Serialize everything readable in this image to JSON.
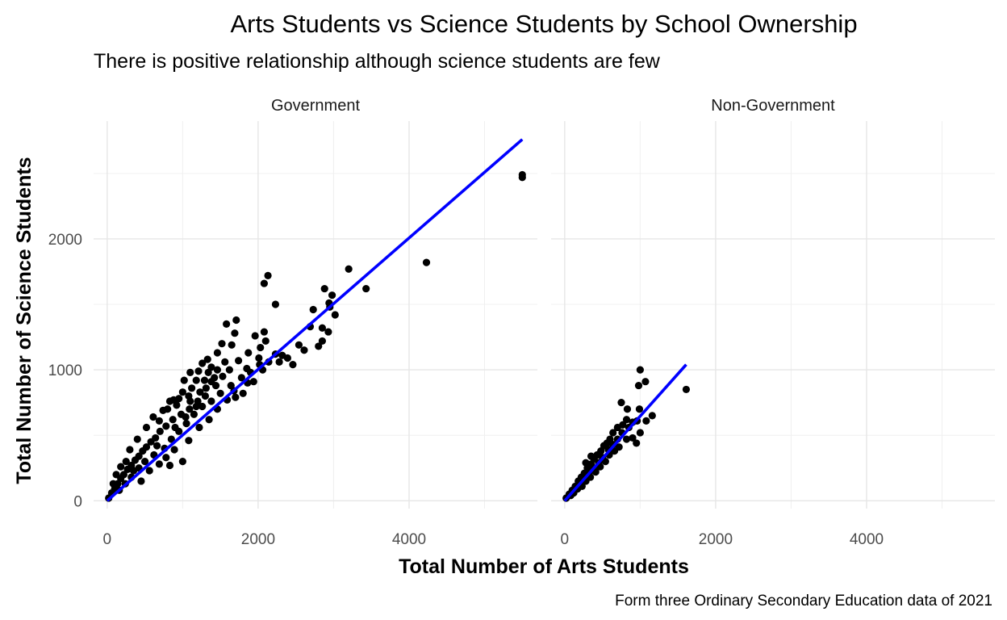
{
  "chart_data": {
    "type": "scatter",
    "title": "Arts Students vs Science Students by School Ownership",
    "subtitle": "There is positive relationship although science students are few",
    "caption": "Form three Ordinary Secondary Education data of 2021",
    "xlabel": "Total Number of Arts Students",
    "ylabel": "Total Number of Science Students",
    "xlim": [
      -180,
      5700
    ],
    "ylim": [
      -60,
      2900
    ],
    "x_ticks": [
      0,
      2000,
      4000
    ],
    "y_ticks": [
      0,
      1000,
      2000
    ],
    "x_tick_labels": [
      "0",
      "2000",
      "4000"
    ],
    "y_tick_labels": [
      "0",
      "1000",
      "2000"
    ],
    "grid": true,
    "point_color": "#000000",
    "fit_color": "#0000ff",
    "facets": [
      {
        "label": "Government",
        "fit_line": {
          "x": [
            0,
            5500
          ],
          "y": [
            0,
            2760
          ]
        },
        "points": [
          [
            5500,
            2470
          ],
          [
            5500,
            2490
          ],
          [
            4230,
            1820
          ],
          [
            3200,
            1770
          ],
          [
            3430,
            1620
          ],
          [
            2880,
            1620
          ],
          [
            2080,
            1660
          ],
          [
            2130,
            1720
          ],
          [
            2940,
            1510
          ],
          [
            2980,
            1570
          ],
          [
            2230,
            1500
          ],
          [
            2950,
            1480
          ],
          [
            3020,
            1420
          ],
          [
            2730,
            1460
          ],
          [
            2850,
            1320
          ],
          [
            2690,
            1330
          ],
          [
            2930,
            1290
          ],
          [
            2850,
            1220
          ],
          [
            2800,
            1180
          ],
          [
            2610,
            1150
          ],
          [
            2540,
            1190
          ],
          [
            2390,
            1090
          ],
          [
            2320,
            1110
          ],
          [
            2460,
            1040
          ],
          [
            1710,
            1380
          ],
          [
            1580,
            1350
          ],
          [
            1690,
            1280
          ],
          [
            1650,
            1190
          ],
          [
            1960,
            1260
          ],
          [
            2080,
            1290
          ],
          [
            2100,
            1220
          ],
          [
            2030,
            1170
          ],
          [
            2010,
            1090
          ],
          [
            1870,
            1130
          ],
          [
            1850,
            1010
          ],
          [
            1740,
            1070
          ],
          [
            1520,
            1200
          ],
          [
            1460,
            1130
          ],
          [
            1330,
            1080
          ],
          [
            1380,
            1020
          ],
          [
            1260,
            1050
          ],
          [
            1210,
            990
          ],
          [
            1340,
            980
          ],
          [
            1100,
            980
          ],
          [
            1180,
            920
          ],
          [
            1290,
            920
          ],
          [
            1020,
            920
          ],
          [
            1120,
            860
          ],
          [
            1000,
            830
          ],
          [
            1080,
            800
          ],
          [
            950,
            780
          ],
          [
            920,
            730
          ],
          [
            1230,
            830
          ],
          [
            1380,
            910
          ],
          [
            1460,
            1000
          ],
          [
            1560,
            1060
          ],
          [
            1620,
            1000
          ],
          [
            1530,
            950
          ],
          [
            1440,
            880
          ],
          [
            1300,
            800
          ],
          [
            1200,
            760
          ],
          [
            1090,
            700
          ],
          [
            980,
            660
          ],
          [
            870,
            620
          ],
          [
            780,
            570
          ],
          [
            700,
            530
          ],
          [
            640,
            480
          ],
          [
            580,
            450
          ],
          [
            520,
            410
          ],
          [
            470,
            380
          ],
          [
            420,
            340
          ],
          [
            370,
            310
          ],
          [
            320,
            270
          ],
          [
            270,
            240
          ],
          [
            220,
            200
          ],
          [
            180,
            170
          ],
          [
            140,
            130
          ],
          [
            100,
            90
          ],
          [
            60,
            60
          ],
          [
            20,
            20
          ],
          [
            620,
            350
          ],
          [
            760,
            400
          ],
          [
            850,
            470
          ],
          [
            950,
            530
          ],
          [
            1050,
            590
          ],
          [
            1150,
            660
          ],
          [
            1260,
            720
          ],
          [
            1380,
            760
          ],
          [
            1500,
            820
          ],
          [
            1640,
            880
          ],
          [
            1780,
            940
          ],
          [
            1900,
            980
          ],
          [
            2020,
            1040
          ],
          [
            2140,
            1060
          ],
          [
            2230,
            1120
          ],
          [
            1800,
            820
          ],
          [
            1700,
            790
          ],
          [
            1860,
            900
          ],
          [
            2060,
            1000
          ],
          [
            2280,
            1060
          ],
          [
            1000,
            300
          ],
          [
            830,
            270
          ],
          [
            450,
            150
          ],
          [
            320,
            180
          ],
          [
            560,
            230
          ],
          [
            690,
            280
          ],
          [
            780,
            330
          ],
          [
            890,
            390
          ],
          [
            1080,
            460
          ],
          [
            1220,
            560
          ],
          [
            1350,
            620
          ],
          [
            1460,
            700
          ],
          [
            1590,
            770
          ],
          [
            1680,
            840
          ],
          [
            1940,
            910
          ],
          [
            400,
            470
          ],
          [
            520,
            560
          ],
          [
            610,
            640
          ],
          [
            740,
            690
          ],
          [
            830,
            760
          ],
          [
            690,
            610
          ],
          [
            800,
            700
          ],
          [
            880,
            770
          ],
          [
            300,
            390
          ],
          [
            250,
            300
          ],
          [
            180,
            260
          ],
          [
            120,
            200
          ],
          [
            80,
            130
          ],
          [
            350,
            230
          ],
          [
            240,
            130
          ],
          [
            160,
            80
          ],
          [
            420,
            250
          ],
          [
            500,
            300
          ],
          [
            660,
            420
          ],
          [
            900,
            560
          ],
          [
            1040,
            640
          ],
          [
            1180,
            720
          ],
          [
            1310,
            860
          ],
          [
            1420,
            940
          ],
          [
            1100,
            760
          ]
        ]
      },
      {
        "label": "Non-Government",
        "fit_line": {
          "x": [
            0,
            1610
          ],
          "y": [
            0,
            1040
          ]
        },
        "points": [
          [
            1000,
            1000
          ],
          [
            1610,
            850
          ],
          [
            1070,
            910
          ],
          [
            980,
            880
          ],
          [
            750,
            750
          ],
          [
            830,
            700
          ],
          [
            990,
            700
          ],
          [
            1160,
            650
          ],
          [
            1080,
            610
          ],
          [
            960,
            610
          ],
          [
            900,
            600
          ],
          [
            850,
            560
          ],
          [
            770,
            580
          ],
          [
            700,
            560
          ],
          [
            640,
            520
          ],
          [
            600,
            470
          ],
          [
            560,
            440
          ],
          [
            520,
            420
          ],
          [
            480,
            380
          ],
          [
            430,
            350
          ],
          [
            390,
            320
          ],
          [
            350,
            280
          ],
          [
            300,
            250
          ],
          [
            260,
            210
          ],
          [
            220,
            180
          ],
          [
            180,
            150
          ],
          [
            140,
            110
          ],
          [
            100,
            80
          ],
          [
            60,
            50
          ],
          [
            20,
            20
          ],
          [
            900,
            480
          ],
          [
            1000,
            520
          ],
          [
            950,
            440
          ],
          [
            820,
            470
          ],
          [
            720,
            410
          ],
          [
            660,
            380
          ],
          [
            590,
            350
          ],
          [
            540,
            300
          ],
          [
            470,
            260
          ],
          [
            410,
            220
          ],
          [
            340,
            180
          ],
          [
            280,
            150
          ],
          [
            230,
            110
          ],
          [
            170,
            90
          ],
          [
            120,
            60
          ],
          [
            820,
            620
          ],
          [
            760,
            520
          ],
          [
            700,
            470
          ],
          [
            640,
            430
          ],
          [
            580,
            390
          ],
          [
            500,
            330
          ],
          [
            450,
            290
          ],
          [
            380,
            250
          ],
          [
            320,
            210
          ],
          [
            260,
            170
          ],
          [
            200,
            130
          ],
          [
            150,
            100
          ],
          [
            80,
            40
          ],
          [
            350,
            340
          ],
          [
            280,
            290
          ]
        ]
      }
    ]
  }
}
